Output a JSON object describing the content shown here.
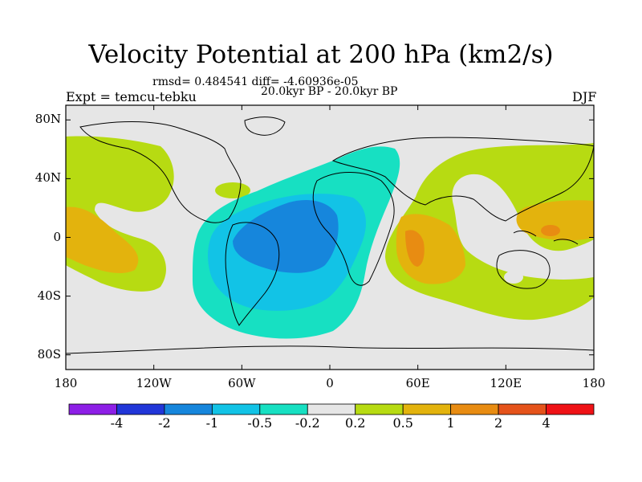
{
  "title": "Velocity Potential at 200 hPa (km2/s)",
  "stats": "rmsd= 0.484541 diff= -4.60936e-05",
  "expt": "Expt = temcu-tebku",
  "period": "20.0kyr BP - 20.0kyr BP",
  "season": "DJF",
  "map": {
    "lat_labels": [
      "80N",
      "40N",
      "0",
      "40S",
      "80S"
    ],
    "lon_labels": [
      "180",
      "120W",
      "60W",
      "0",
      "60E",
      "120E",
      "180"
    ],
    "lat_range": [
      -90,
      90
    ],
    "lon_range": [
      -180,
      180
    ]
  },
  "colorbar": {
    "colors": [
      "#8d1fe6",
      "#2136d8",
      "#1686dc",
      "#12c3e6",
      "#17e0c2",
      "#e6e6e6",
      "#b7db12",
      "#e3b30d",
      "#e88c12",
      "#e5531b",
      "#ef1216"
    ],
    "labels": [
      "-4",
      "-2",
      "-1",
      "-0.5",
      "-0.2",
      "0.2",
      "0.5",
      "1",
      "2",
      "4"
    ]
  },
  "colors": {
    "neutral": "#e6e6e6",
    "lime": "#b7db12",
    "orange": "#e3b30d",
    "dark_orange": "#e88c12",
    "teal": "#17e0c2",
    "cyan": "#12c3e6",
    "blue": "#1686dc"
  }
}
